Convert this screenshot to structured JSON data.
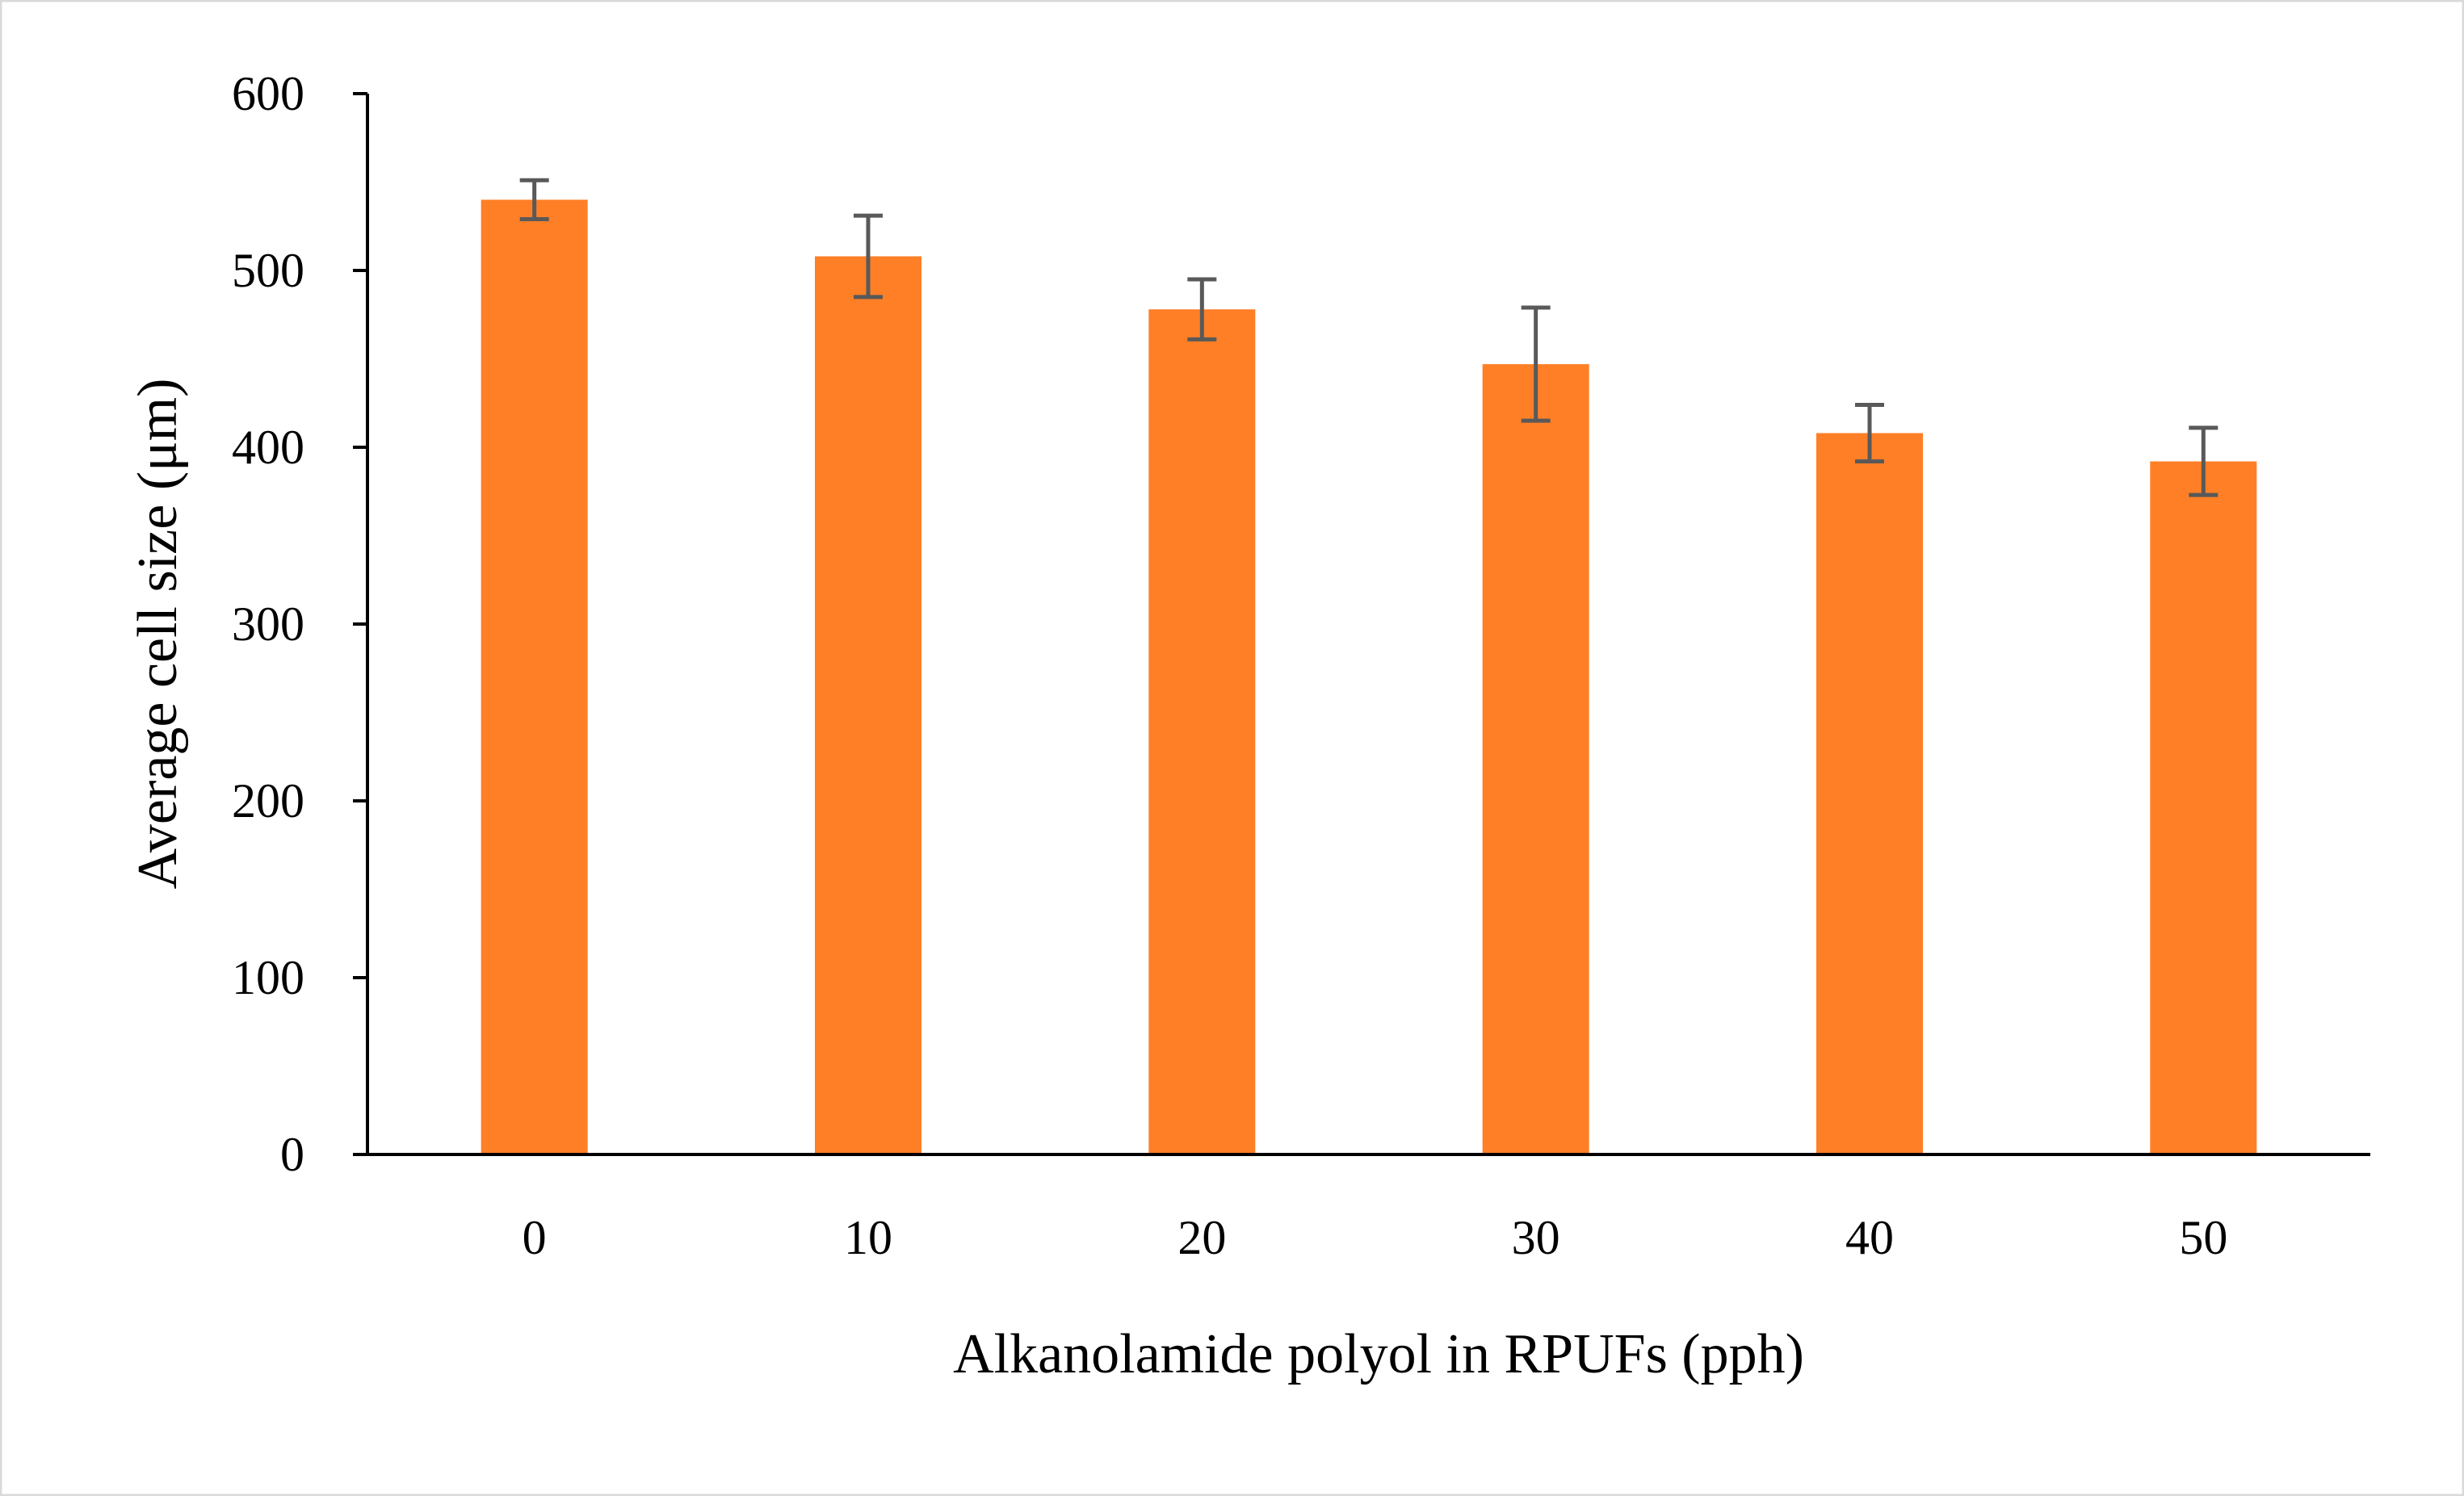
{
  "chart_data": {
    "type": "bar",
    "title": "",
    "xlabel": "Alkanolamide polyol in RPUFs (pph)",
    "ylabel": "Average cell size (μm)",
    "categories": [
      "0",
      "10",
      "20",
      "30",
      "40",
      "50"
    ],
    "values": [
      540,
      508,
      478,
      447,
      408,
      392
    ],
    "error": [
      11,
      23,
      17,
      32,
      16,
      19
    ],
    "ylim": [
      0,
      600
    ],
    "yticks": [
      0,
      100,
      200,
      300,
      400,
      500,
      600
    ],
    "ytick_labels": [
      "0",
      "100",
      "200",
      "300",
      "400",
      "500",
      "600"
    ],
    "grid": false,
    "legend": "none",
    "colors": {
      "bar": "#FF7F27",
      "errorbar": "#595959",
      "axis": "#000000",
      "frame": "#D9D9D9"
    }
  }
}
